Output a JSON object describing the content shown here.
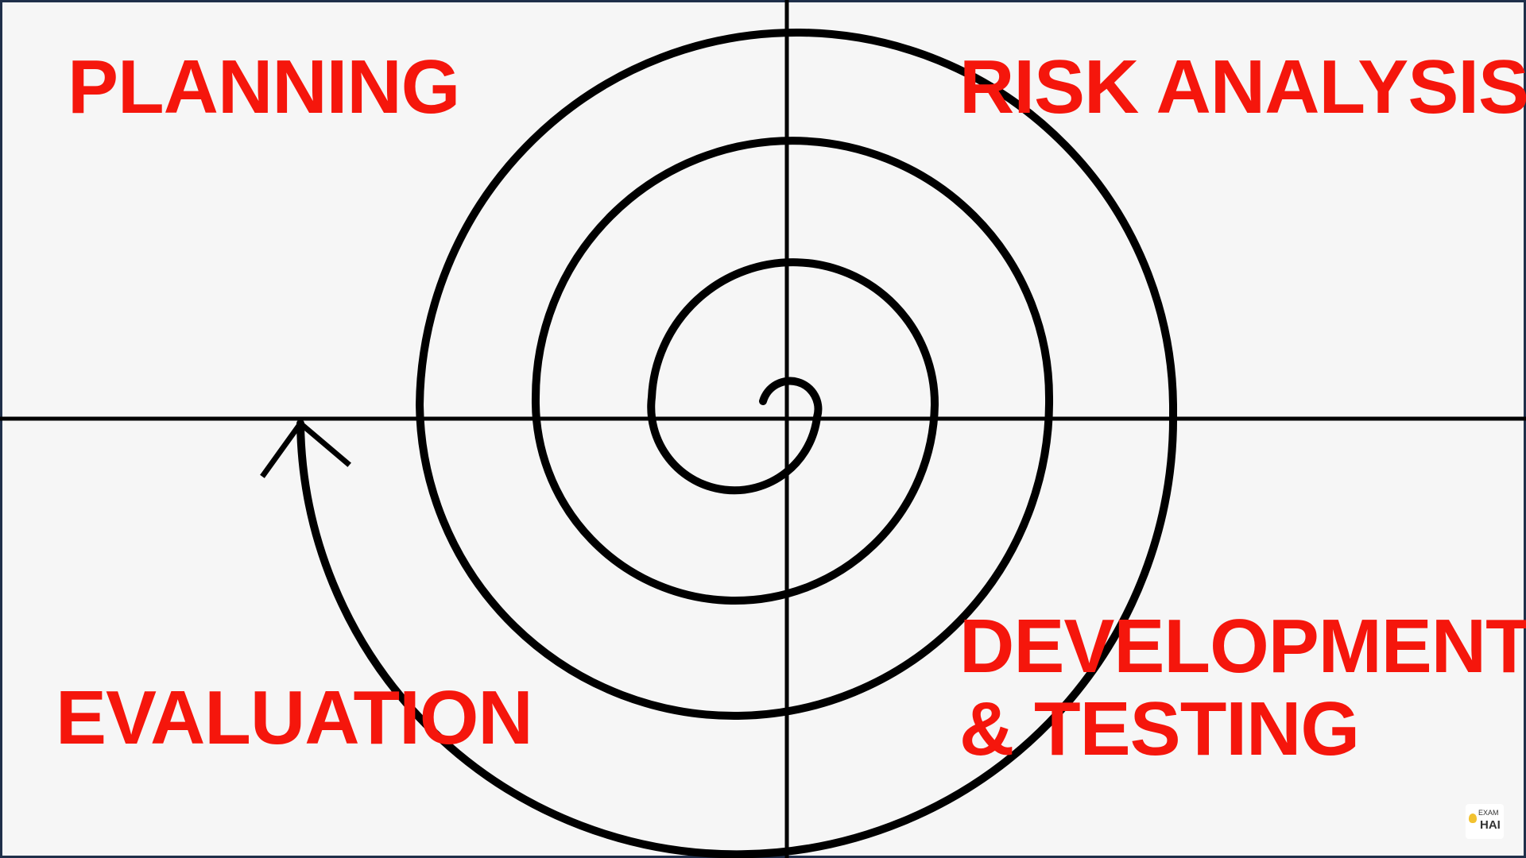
{
  "quadrants": {
    "planning": {
      "label": "PLANNING"
    },
    "risk_analysis": {
      "label": "RISK ANALYSIS"
    },
    "evaluation": {
      "label": "EVALUATION"
    },
    "development_testing": {
      "line1": "DEVELOPMENT",
      "line2": "& TESTING"
    }
  },
  "watermark": {
    "line1": "EXAM",
    "line2": "HAI"
  },
  "colors": {
    "label": "#f5160c",
    "background": "#f6f6f6",
    "ink": "#000000"
  }
}
